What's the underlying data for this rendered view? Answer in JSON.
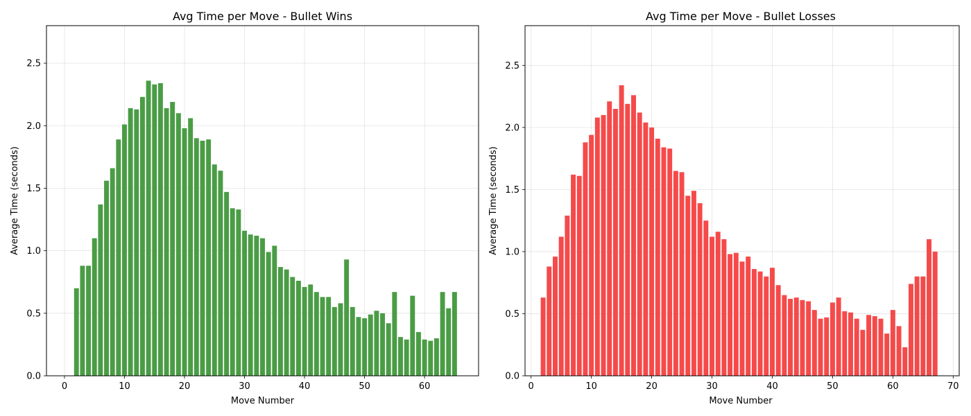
{
  "chart_data": [
    {
      "type": "bar",
      "title": "Avg Time per Move - Bullet Wins",
      "xlabel": "Move Number",
      "ylabel": "Average Time (seconds)",
      "color": "#4a9c45",
      "xlim": [
        -3,
        69
      ],
      "ylim": [
        0,
        2.8
      ],
      "xticks": [
        0,
        10,
        20,
        30,
        40,
        50,
        60
      ],
      "yticks": [
        0.0,
        0.5,
        1.0,
        1.5,
        2.0,
        2.5
      ],
      "grid": true,
      "x": [
        2,
        3,
        4,
        5,
        6,
        7,
        8,
        9,
        10,
        11,
        12,
        13,
        14,
        15,
        16,
        17,
        18,
        19,
        20,
        21,
        22,
        23,
        24,
        25,
        26,
        27,
        28,
        29,
        30,
        31,
        32,
        33,
        34,
        35,
        36,
        37,
        38,
        39,
        40,
        41,
        42,
        43,
        44,
        45,
        46,
        47,
        48,
        49,
        50,
        51,
        52,
        53,
        54,
        55,
        56,
        57,
        58,
        59,
        60,
        61,
        62,
        63,
        64,
        65
      ],
      "values": [
        0.7,
        0.88,
        0.88,
        1.1,
        1.37,
        1.56,
        1.66,
        1.89,
        2.01,
        2.14,
        2.13,
        2.23,
        2.36,
        2.33,
        2.34,
        2.14,
        2.19,
        2.1,
        1.98,
        2.06,
        1.9,
        1.88,
        1.89,
        1.69,
        1.64,
        1.47,
        1.34,
        1.33,
        1.16,
        1.13,
        1.12,
        1.1,
        0.99,
        1.04,
        0.87,
        0.85,
        0.79,
        0.76,
        0.71,
        0.73,
        0.67,
        0.63,
        0.63,
        0.55,
        0.58,
        0.93,
        0.55,
        0.47,
        0.46,
        0.49,
        0.52,
        0.5,
        0.42,
        0.67,
        0.31,
        0.29,
        0.64,
        0.35,
        0.29,
        0.28,
        0.3,
        0.67,
        0.54,
        0.67
      ]
    },
    {
      "type": "bar",
      "title": "Avg Time per Move - Bullet Losses",
      "xlabel": "Move Number",
      "ylabel": "Average Time (seconds)",
      "color": "#f54a4a",
      "xlim": [
        -1,
        71
      ],
      "ylim": [
        0,
        2.82
      ],
      "xticks": [
        0,
        10,
        20,
        30,
        40,
        50,
        60,
        70
      ],
      "yticks": [
        0.0,
        0.5,
        1.0,
        1.5,
        2.0,
        2.5
      ],
      "grid": true,
      "x": [
        2,
        3,
        4,
        5,
        6,
        7,
        8,
        9,
        10,
        11,
        12,
        13,
        14,
        15,
        16,
        17,
        18,
        19,
        20,
        21,
        22,
        23,
        24,
        25,
        26,
        27,
        28,
        29,
        30,
        31,
        32,
        33,
        34,
        35,
        36,
        37,
        38,
        39,
        40,
        41,
        42,
        43,
        44,
        45,
        46,
        47,
        48,
        49,
        50,
        51,
        52,
        53,
        54,
        55,
        56,
        57,
        58,
        59,
        60,
        61,
        62,
        63,
        64,
        65,
        66,
        67
      ],
      "values": [
        0.63,
        0.88,
        0.96,
        1.12,
        1.29,
        1.62,
        1.61,
        1.88,
        1.94,
        2.08,
        2.1,
        2.21,
        2.15,
        2.34,
        2.19,
        2.26,
        2.12,
        2.04,
        2.0,
        1.91,
        1.84,
        1.83,
        1.65,
        1.64,
        1.45,
        1.49,
        1.39,
        1.25,
        1.12,
        1.16,
        1.1,
        0.98,
        0.99,
        0.92,
        0.96,
        0.86,
        0.84,
        0.8,
        0.87,
        0.73,
        0.65,
        0.62,
        0.63,
        0.61,
        0.6,
        0.53,
        0.46,
        0.47,
        0.59,
        0.63,
        0.52,
        0.51,
        0.46,
        0.37,
        0.49,
        0.48,
        0.46,
        0.34,
        0.53,
        0.4,
        0.23,
        0.74,
        0.8,
        0.8,
        1.1,
        1.0
      ]
    }
  ]
}
